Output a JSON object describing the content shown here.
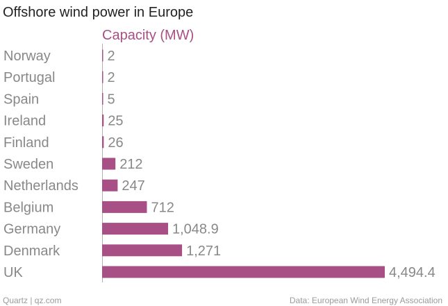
{
  "title": "Offshore wind power in Europe",
  "footer": {
    "left": "Quartz | qz.com",
    "right": "Data: European Wind Energy Association"
  },
  "colors": {
    "bar": "#a84f85",
    "axis": "#b0b0b0",
    "label": "#888888"
  },
  "chart_data": {
    "type": "bar",
    "orientation": "horizontal",
    "title": "Offshore wind power in Europe",
    "categories": [
      "Norway",
      "Portugal",
      "Spain",
      "Ireland",
      "Finland",
      "Sweden",
      "Netherlands",
      "Belgium",
      "Germany",
      "Denmark",
      "UK"
    ],
    "series": [
      {
        "name": "Capacity (MW)",
        "values": [
          2,
          2,
          5,
          25,
          26,
          212,
          247,
          712,
          1048.9,
          1271,
          4494.4
        ],
        "labels": [
          "2",
          "2",
          "5",
          "25",
          "26",
          "212",
          "247",
          "712",
          "1,048.9",
          "1,271",
          "4,494.4"
        ]
      }
    ],
    "xlim": [
      0,
      4494.4
    ],
    "grid": false,
    "legend": "none"
  }
}
